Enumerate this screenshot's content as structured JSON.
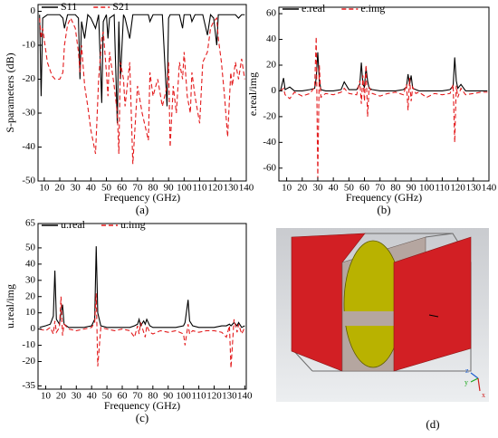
{
  "chart_data": [
    {
      "type": "line",
      "xlabel": "Frequency (GHz)",
      "ylabel": "S-parameters (dB)",
      "caption": "(a)",
      "xlim": [
        6,
        140
      ],
      "ylim": [
        -50,
        2
      ],
      "xticks": [
        10,
        20,
        30,
        40,
        50,
        60,
        70,
        80,
        90,
        100,
        110,
        120,
        130,
        140
      ],
      "yticks": [
        0,
        -10,
        -20,
        -30,
        -40,
        -50
      ],
      "x": [
        7,
        8,
        9,
        12,
        15,
        17,
        20,
        22,
        23,
        25,
        27,
        30,
        32,
        33,
        34,
        36,
        38,
        40,
        43,
        45,
        47,
        48,
        50,
        51,
        52,
        55,
        57,
        58,
        59,
        61,
        62,
        65,
        67,
        70,
        73,
        77,
        78,
        80,
        83,
        86,
        89,
        90,
        91,
        93,
        95,
        97,
        99,
        100,
        102,
        104,
        105,
        107,
        110,
        112,
        115,
        117,
        119,
        121,
        122,
        124,
        126,
        128,
        130,
        131,
        133,
        135,
        137,
        139
      ],
      "series": [
        {
          "name": "S11",
          "color": "#000000",
          "linestyle": "solid",
          "values": [
            -1,
            -25,
            -2,
            -1,
            -1,
            -1,
            -1,
            -2,
            -5,
            -1,
            -1,
            -1,
            -2,
            -20,
            -3,
            -8,
            -1,
            -2,
            -5,
            -1,
            -27,
            -3,
            -1,
            -8,
            -2,
            -1,
            -33,
            -3,
            -20,
            -1,
            -2,
            -8,
            -1,
            -1,
            -1,
            -1,
            -3,
            -1,
            -1,
            -1,
            -28,
            -2,
            -1,
            -1,
            -1,
            -1,
            -5,
            -1,
            -1,
            -1,
            -3,
            -1,
            -1,
            -1,
            -7,
            -1,
            -2,
            -10,
            -1,
            -1,
            -1,
            -1,
            -1,
            -1,
            -1,
            -2,
            -1,
            -1
          ]
        },
        {
          "name": "S21",
          "color": "#e31a1c",
          "linestyle": "dashed",
          "values": [
            -2,
            -8,
            -5,
            -15,
            -19,
            -20,
            -20,
            -18,
            -10,
            -4,
            -2,
            -5,
            -12,
            -18,
            -10,
            -22,
            -28,
            -35,
            -42,
            -20,
            -8,
            -6,
            -18,
            -25,
            -12,
            -22,
            -30,
            -42,
            -15,
            -20,
            -28,
            -15,
            -45,
            -22,
            -30,
            -38,
            -18,
            -25,
            -20,
            -28,
            -22,
            -15,
            -40,
            -22,
            -30,
            -15,
            -20,
            -12,
            -25,
            -30,
            -18,
            -25,
            -33,
            -15,
            -12,
            -5,
            -3,
            -2,
            -8,
            -15,
            -25,
            -37,
            -18,
            -22,
            -15,
            -20,
            -14,
            -20
          ]
        }
      ]
    },
    {
      "type": "line",
      "xlabel": "Frequency (GHz)",
      "ylabel": "e.real/img",
      "caption": "(b)",
      "xlim": [
        5,
        140
      ],
      "ylim": [
        -70,
        65
      ],
      "xticks": [
        10,
        20,
        30,
        40,
        50,
        60,
        70,
        80,
        90,
        100,
        110,
        120,
        130,
        140
      ],
      "yticks": [
        60,
        40,
        20,
        0,
        -20,
        -40,
        -60
      ],
      "x": [
        6,
        8,
        9,
        12,
        15,
        20,
        25,
        28,
        29,
        30,
        31,
        32,
        35,
        40,
        45,
        47,
        50,
        55,
        57,
        58,
        59,
        60,
        61,
        62,
        63,
        65,
        70,
        75,
        80,
        85,
        87,
        88,
        89,
        90,
        91,
        93,
        95,
        100,
        105,
        110,
        115,
        117,
        118,
        119,
        120,
        122,
        125,
        130,
        135,
        139
      ],
      "series": [
        {
          "name": "e.real",
          "color": "#000000",
          "linestyle": "solid",
          "values": [
            0,
            10,
            1,
            3,
            0,
            0,
            1,
            2,
            10,
            30,
            8,
            1,
            0,
            0,
            1,
            7,
            1,
            1,
            5,
            22,
            5,
            3,
            18,
            8,
            2,
            1,
            0,
            0,
            0,
            1,
            3,
            13,
            5,
            12,
            2,
            1,
            0,
            0,
            0,
            0,
            1,
            4,
            26,
            8,
            2,
            5,
            0,
            0,
            0,
            0
          ]
        },
        {
          "name": "e.img",
          "color": "#e31a1c",
          "linestyle": "dashed",
          "values": [
            0,
            2,
            -3,
            -6,
            -1,
            -4,
            -2,
            3,
            42,
            -68,
            20,
            -5,
            -2,
            -3,
            -1,
            2,
            -2,
            -3,
            8,
            -10,
            12,
            -8,
            20,
            -20,
            3,
            -2,
            -4,
            -2,
            -1,
            -3,
            5,
            -15,
            10,
            -8,
            3,
            -2,
            -1,
            -5,
            -2,
            -3,
            -2,
            5,
            -40,
            4,
            -5,
            2,
            -3,
            -2,
            -1,
            -1
          ]
        }
      ]
    },
    {
      "type": "line",
      "xlabel": "Frequency (GHz)",
      "ylabel": "u.real/img",
      "caption": "(c)",
      "xlim": [
        5,
        141
      ],
      "ylim": [
        -37,
        65
      ],
      "xticks": [
        10,
        20,
        30,
        40,
        50,
        60,
        70,
        80,
        90,
        100,
        110,
        120,
        130,
        140
      ],
      "yticks": [
        65,
        50,
        40,
        30,
        20,
        10,
        0,
        -10,
        -20,
        -35
      ],
      "x": [
        6,
        10,
        13,
        15,
        16,
        17,
        19,
        20,
        21,
        22,
        25,
        30,
        35,
        40,
        42,
        43,
        44,
        46,
        50,
        55,
        60,
        65,
        68,
        70,
        71,
        72,
        74,
        75,
        76,
        78,
        80,
        85,
        90,
        95,
        100,
        101,
        103,
        104,
        106,
        110,
        115,
        120,
        125,
        128,
        130,
        131,
        133,
        135,
        136,
        138,
        140
      ],
      "series": [
        {
          "name": "u.real",
          "color": "#000000",
          "linestyle": "solid",
          "values": [
            1,
            2,
            3,
            8,
            36,
            6,
            3,
            10,
            15,
            3,
            1,
            1,
            1,
            2,
            6,
            51,
            10,
            2,
            1,
            1,
            1,
            1,
            2,
            3,
            6,
            2,
            5,
            3,
            6,
            2,
            1,
            1,
            1,
            1,
            2,
            4,
            18,
            5,
            2,
            1,
            1,
            1,
            2,
            2,
            3,
            2,
            4,
            2,
            4,
            1,
            2
          ]
        },
        {
          "name": "u.img",
          "color": "#e31a1c",
          "linestyle": "dashed",
          "values": [
            0,
            -1,
            1,
            -3,
            5,
            -2,
            1,
            20,
            -4,
            3,
            0,
            -1,
            0,
            1,
            4,
            22,
            -23,
            1,
            0,
            -1,
            0,
            -1,
            -5,
            2,
            -3,
            4,
            -2,
            -5,
            2,
            -2,
            -3,
            -1,
            -2,
            -1,
            -3,
            -10,
            3,
            -3,
            -1,
            -2,
            -1,
            -1,
            -2,
            -5,
            2,
            -24,
            6,
            -2,
            3,
            -3,
            1
          ]
        }
      ]
    }
  ],
  "diagram": {
    "caption": "(d)",
    "axes": [
      "z",
      "y",
      "x"
    ]
  }
}
